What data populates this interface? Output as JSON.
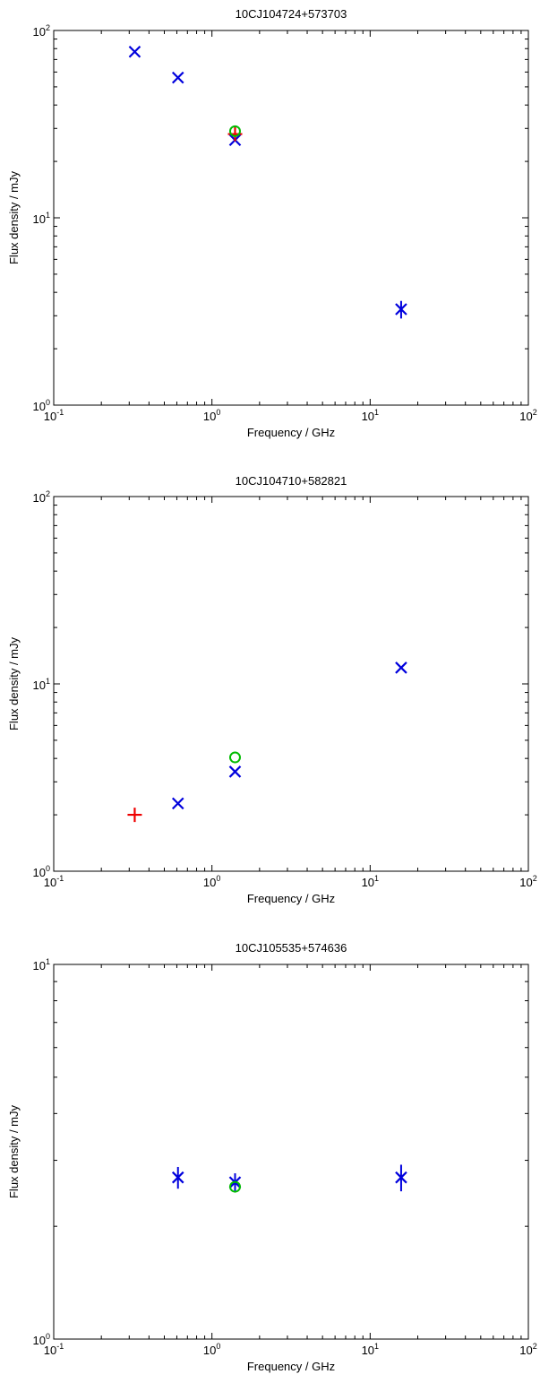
{
  "chart_data": [
    {
      "type": "scatter",
      "title": "10CJ104724+573703",
      "xlabel": "Frequency / GHz",
      "ylabel": "Flux density / mJy",
      "xscale": "log",
      "yscale": "log",
      "xlim": [
        0.1,
        100
      ],
      "ylim": [
        1,
        100
      ],
      "xticklabels": [
        {
          "base": "10",
          "exp": "-1"
        },
        {
          "base": "10",
          "exp": "0"
        },
        {
          "base": "10",
          "exp": "1"
        },
        {
          "base": "10",
          "exp": "2"
        }
      ],
      "yticklabels": [
        {
          "base": "10",
          "exp": "0"
        },
        {
          "base": "10",
          "exp": "1"
        },
        {
          "base": "10",
          "exp": "2"
        }
      ],
      "grid": false,
      "series": [
        {
          "marker": "x",
          "color": "#0000dd",
          "points": [
            {
              "x": 0.325,
              "y": 77
            },
            {
              "x": 0.61,
              "y": 56
            },
            {
              "x": 1.4,
              "y": 26
            },
            {
              "x": 15.7,
              "y": 3.25,
              "err": 0.35
            }
          ]
        },
        {
          "marker": "+",
          "color": "#ee0000",
          "points": [
            {
              "x": 1.4,
              "y": 28
            }
          ]
        },
        {
          "marker": "o",
          "color": "#00bb00",
          "points": [
            {
              "x": 1.4,
              "y": 29
            }
          ]
        }
      ]
    },
    {
      "type": "scatter",
      "title": "10CJ104710+582821",
      "xlabel": "Frequency / GHz",
      "ylabel": "Flux density / mJy",
      "xscale": "log",
      "yscale": "log",
      "xlim": [
        0.1,
        100
      ],
      "ylim": [
        1,
        100
      ],
      "xticklabels": [
        {
          "base": "10",
          "exp": "-1"
        },
        {
          "base": "10",
          "exp": "0"
        },
        {
          "base": "10",
          "exp": "1"
        },
        {
          "base": "10",
          "exp": "2"
        }
      ],
      "yticklabels": [
        {
          "base": "10",
          "exp": "0"
        },
        {
          "base": "10",
          "exp": "1"
        },
        {
          "base": "10",
          "exp": "2"
        }
      ],
      "grid": false,
      "series": [
        {
          "marker": "x",
          "color": "#0000dd",
          "points": [
            {
              "x": 0.61,
              "y": 2.3
            },
            {
              "x": 1.4,
              "y": 3.4
            },
            {
              "x": 15.7,
              "y": 12.2
            }
          ]
        },
        {
          "marker": "+",
          "color": "#ee0000",
          "points": [
            {
              "x": 0.325,
              "y": 2.0
            }
          ]
        },
        {
          "marker": "o",
          "color": "#00bb00",
          "points": [
            {
              "x": 1.4,
              "y": 4.05
            }
          ]
        }
      ]
    },
    {
      "type": "scatter",
      "title": "10CJ105535+574636",
      "xlabel": "Frequency / GHz",
      "ylabel": "Flux density / mJy",
      "xscale": "log",
      "yscale": "log",
      "xlim": [
        0.1,
        100
      ],
      "ylim": [
        1,
        10
      ],
      "xticklabels": [
        {
          "base": "10",
          "exp": "-1"
        },
        {
          "base": "10",
          "exp": "0"
        },
        {
          "base": "10",
          "exp": "1"
        },
        {
          "base": "10",
          "exp": "2"
        }
      ],
      "yticklabels": [
        {
          "base": "10",
          "exp": "0"
        },
        {
          "base": "10",
          "exp": "1"
        }
      ],
      "grid": false,
      "series": [
        {
          "marker": "x",
          "color": "#0000dd",
          "points": [
            {
              "x": 0.61,
              "y": 2.7,
              "err": 0.18
            },
            {
              "x": 1.4,
              "y": 2.62,
              "err": 0.15
            },
            {
              "x": 15.7,
              "y": 2.7,
              "err": 0.22
            }
          ]
        },
        {
          "marker": "o",
          "color": "#00bb00",
          "points": [
            {
              "x": 1.4,
              "y": 2.55
            }
          ]
        }
      ]
    }
  ]
}
